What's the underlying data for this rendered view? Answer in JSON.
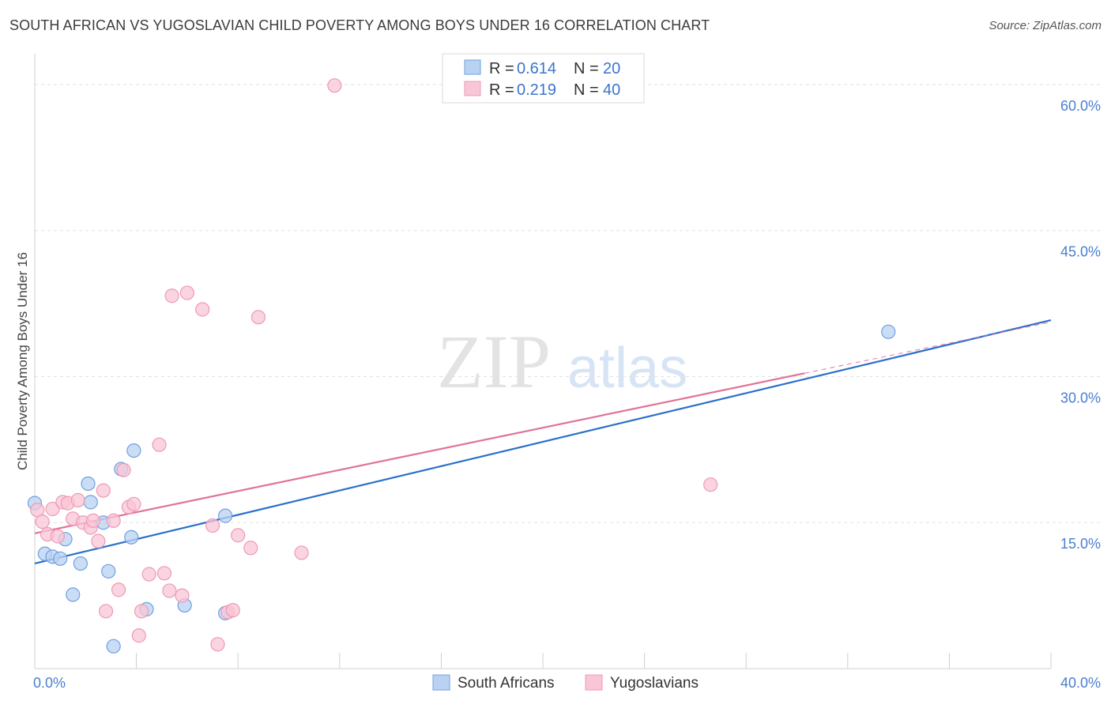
{
  "title": "SOUTH AFRICAN VS YUGOSLAVIAN CHILD POVERTY AMONG BOYS UNDER 16 CORRELATION CHART",
  "source": "Source: ZipAtlas.com",
  "watermark": {
    "zip": "ZIP",
    "atlas": "atlas"
  },
  "chart_data": {
    "type": "scatter",
    "title": "SOUTH AFRICAN VS YUGOSLAVIAN CHILD POVERTY AMONG BOYS UNDER 16 CORRELATION CHART",
    "xlabel": "",
    "ylabel": "Child Poverty Among Boys Under 16",
    "xlim": [
      0,
      40
    ],
    "ylim": [
      0,
      63
    ],
    "x_tick_labels": [
      {
        "value": 0,
        "label": "0.0%"
      },
      {
        "value": 40,
        "label": "40.0%"
      }
    ],
    "x_minor_ticks": [
      0,
      4,
      8,
      12,
      16,
      20,
      24,
      28,
      32,
      36,
      40
    ],
    "y_ticks": [
      {
        "value": 15,
        "label": "15.0%"
      },
      {
        "value": 30,
        "label": "30.0%"
      },
      {
        "value": 45,
        "label": "45.0%"
      },
      {
        "value": 60,
        "label": "60.0%"
      }
    ],
    "grid": true,
    "legend": [
      {
        "name": "South Africans",
        "r_label": "R =",
        "r_value": "0.614",
        "n_label": "N =",
        "n_value": "20"
      },
      {
        "name": "Yugoslavians",
        "r_label": "R =",
        "r_value": "0.219",
        "n_label": "N =",
        "n_value": "40"
      }
    ],
    "series": [
      {
        "name": "South Africans",
        "color": "#6fa0e0",
        "fill": "#b9d2f2",
        "line_color": "#2b6fcc",
        "points": [
          [
            0.0,
            17.0
          ],
          [
            0.4,
            11.8
          ],
          [
            0.7,
            11.5
          ],
          [
            1.0,
            11.3
          ],
          [
            1.2,
            13.3
          ],
          [
            1.5,
            7.6
          ],
          [
            1.8,
            10.8
          ],
          [
            2.1,
            19.0
          ],
          [
            2.2,
            17.1
          ],
          [
            2.7,
            15.0
          ],
          [
            2.9,
            10.0
          ],
          [
            3.1,
            2.3
          ],
          [
            3.4,
            20.5
          ],
          [
            3.8,
            13.5
          ],
          [
            3.9,
            22.4
          ],
          [
            4.4,
            6.1
          ],
          [
            5.9,
            6.5
          ],
          [
            7.5,
            5.7
          ],
          [
            7.5,
            15.7
          ],
          [
            33.6,
            34.6
          ]
        ],
        "trend": {
          "x0": 0,
          "y0": 10.8,
          "x1": 40,
          "y1": 35.8,
          "dashed_from": null
        }
      },
      {
        "name": "Yugoslavians",
        "color": "#ee9ab4",
        "fill": "#f8c6d6",
        "line_color": "#e0729a",
        "points": [
          [
            0.1,
            16.3
          ],
          [
            0.3,
            15.1
          ],
          [
            0.5,
            13.8
          ],
          [
            0.7,
            16.4
          ],
          [
            0.9,
            13.6
          ],
          [
            1.1,
            17.1
          ],
          [
            1.3,
            17.0
          ],
          [
            1.5,
            15.4
          ],
          [
            1.7,
            17.3
          ],
          [
            1.9,
            15.0
          ],
          [
            2.2,
            14.5
          ],
          [
            2.3,
            15.2
          ],
          [
            2.5,
            13.1
          ],
          [
            2.7,
            18.3
          ],
          [
            2.8,
            5.9
          ],
          [
            3.1,
            15.2
          ],
          [
            3.3,
            8.1
          ],
          [
            3.5,
            20.4
          ],
          [
            3.7,
            16.6
          ],
          [
            3.9,
            16.9
          ],
          [
            4.1,
            3.4
          ],
          [
            4.2,
            5.9
          ],
          [
            4.5,
            9.7
          ],
          [
            4.9,
            23.0
          ],
          [
            5.1,
            9.8
          ],
          [
            5.3,
            8.0
          ],
          [
            5.4,
            38.3
          ],
          [
            5.8,
            7.5
          ],
          [
            6.0,
            38.6
          ],
          [
            6.6,
            36.9
          ],
          [
            7.0,
            14.7
          ],
          [
            7.2,
            2.5
          ],
          [
            7.6,
            5.8
          ],
          [
            7.8,
            6.0
          ],
          [
            8.0,
            13.7
          ],
          [
            8.5,
            12.4
          ],
          [
            8.8,
            36.1
          ],
          [
            10.5,
            11.9
          ],
          [
            11.8,
            59.9
          ],
          [
            26.6,
            18.9
          ]
        ],
        "trend": {
          "x0": 0,
          "y0": 13.9,
          "x1": 40,
          "y1": 35.6,
          "dashed_from": 30.3
        }
      }
    ]
  }
}
